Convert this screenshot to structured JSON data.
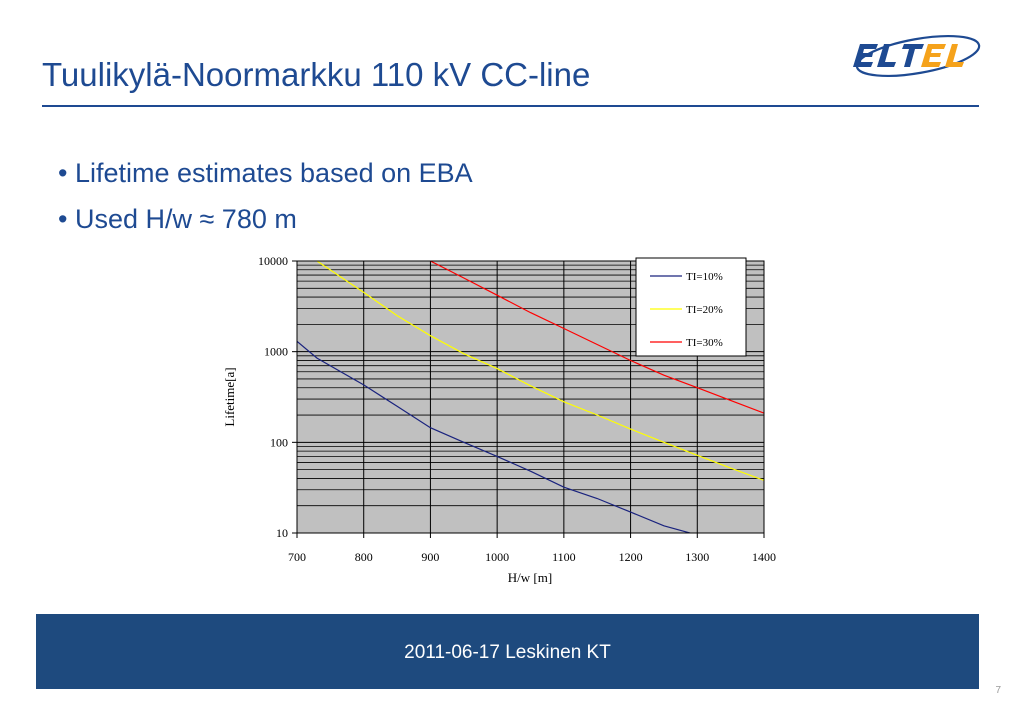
{
  "slide": {
    "title": "Tuulikylä-Noormarkku 110 kV CC-line",
    "logo_text": "ELTEL",
    "bullets": [
      "• Lifetime estimates based on EBA",
      "• Used H/w ≈ 780 m"
    ],
    "footer": "2011-06-17 Leskinen KT",
    "page_number": "7",
    "colors": {
      "title": "#1e4a92",
      "footer_bg": "#1e4a7e",
      "logo_blue": "#1e4a92",
      "logo_orange": "#f5a21b"
    }
  },
  "chart_data": {
    "type": "line",
    "xlabel": "H/w [m]",
    "ylabel": "Lifetime[a]",
    "log_y": true,
    "xlim": [
      700,
      1400
    ],
    "ylim": [
      10,
      10000
    ],
    "x_ticks": [
      "700",
      "800",
      "900",
      "1000",
      "1100",
      "1200",
      "1300",
      "1400"
    ],
    "y_ticks": [
      "10",
      "100",
      "1000",
      "10000"
    ],
    "grid": true,
    "legend_position": "top-right",
    "plot_bg": "#c0c0c0",
    "series": [
      {
        "name": "TI=10%",
        "color": "#1a237e",
        "x": [
          700,
          730,
          800,
          850,
          900,
          950,
          1000,
          1050,
          1100,
          1150,
          1200,
          1250,
          1300
        ],
        "y": [
          1300,
          850,
          430,
          250,
          145,
          100,
          70,
          48,
          32,
          24,
          17,
          12,
          9.5
        ]
      },
      {
        "name": "TI=20%",
        "color": "#ffff00",
        "x": [
          730,
          800,
          850,
          900,
          950,
          1000,
          1050,
          1100,
          1150,
          1200,
          1250,
          1300,
          1350,
          1400
        ],
        "y": [
          10000,
          4500,
          2500,
          1500,
          950,
          650,
          420,
          280,
          200,
          140,
          100,
          72,
          52,
          38
        ]
      },
      {
        "name": "TI=30%",
        "color": "#ff0000",
        "x": [
          900,
          950,
          1000,
          1050,
          1100,
          1150,
          1200,
          1250,
          1300,
          1350,
          1400
        ],
        "y": [
          10000,
          6500,
          4200,
          2700,
          1800,
          1200,
          800,
          550,
          400,
          290,
          210
        ]
      }
    ]
  }
}
